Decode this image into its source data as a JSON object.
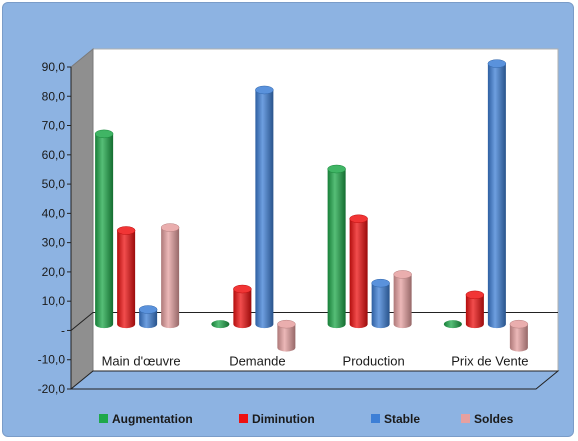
{
  "chart_data": {
    "type": "bar",
    "style": "3d-cylinder",
    "categories": [
      "Main d'œuvre",
      "Demande",
      "Production",
      "Prix de Vente"
    ],
    "series": [
      {
        "name": "Augmentation",
        "values": [
          65,
          0,
          53,
          0
        ],
        "color": "#1ea84a"
      },
      {
        "name": "Diminution",
        "values": [
          32,
          12,
          36,
          10
        ],
        "color": "#ee1111"
      },
      {
        "name": "Stable",
        "values": [
          5,
          80,
          14,
          89
        ],
        "color": "#3d7fd6"
      },
      {
        "name": "Soldes",
        "values": [
          33,
          -8,
          17,
          -8
        ],
        "color": "#e6a0a0"
      }
    ],
    "yticks": [
      "90,0",
      "80,0",
      "70,0",
      "60,0",
      "50,0",
      "40,0",
      "30,0",
      "20,0",
      "10,0",
      "-",
      "-10,0",
      "-20,0"
    ],
    "ylim": [
      -20,
      90
    ],
    "legend_position": "bottom",
    "grid": false,
    "colors": {
      "frame_background": "#8db3e2",
      "plot_background": "#ffffff"
    }
  }
}
